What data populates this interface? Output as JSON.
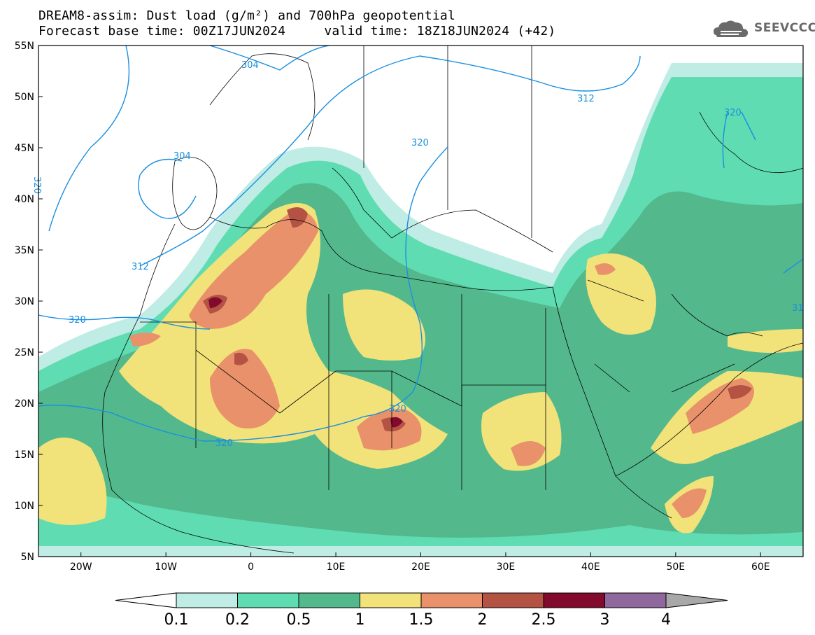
{
  "header": {
    "line1": "DREAM8-assim: Dust load (g/m²) and 700hPa geopotential",
    "line2": "Forecast base time: 00Z17JUN2024     valid time: 18Z18JUN2024 (+42)"
  },
  "logo": {
    "text": "SEEVCCC",
    "icon": "cloud-logo-icon"
  },
  "map": {
    "lon_range": [
      -25,
      65
    ],
    "lat_range": [
      5,
      55
    ],
    "lat_labels": [
      "55N",
      "50N",
      "45N",
      "40N",
      "35N",
      "30N",
      "25N",
      "20N",
      "15N",
      "10N",
      "5N"
    ],
    "lon_labels": [
      "20W",
      "10W",
      "0",
      "10E",
      "20E",
      "30E",
      "40E",
      "50E",
      "60E"
    ],
    "contour_labels": [
      "304",
      "312",
      "320",
      "304",
      "312",
      "320",
      "320",
      "320",
      "320",
      "31",
      "320"
    ],
    "colors": {
      "sea_background": "#ffffff",
      "geopotential_contour": "#1a8fe0",
      "coastline": "#000000"
    }
  },
  "colorbar": {
    "levels": [
      "0.1",
      "0.2",
      "0.5",
      "1",
      "1.5",
      "2",
      "2.5",
      "3",
      "4"
    ],
    "colors": [
      "#bfece4",
      "#5fdcb2",
      "#53b98d",
      "#f2e27a",
      "#e8916a",
      "#b45344",
      "#820a2c",
      "#8f689d",
      "#a8a8a8"
    ]
  }
}
